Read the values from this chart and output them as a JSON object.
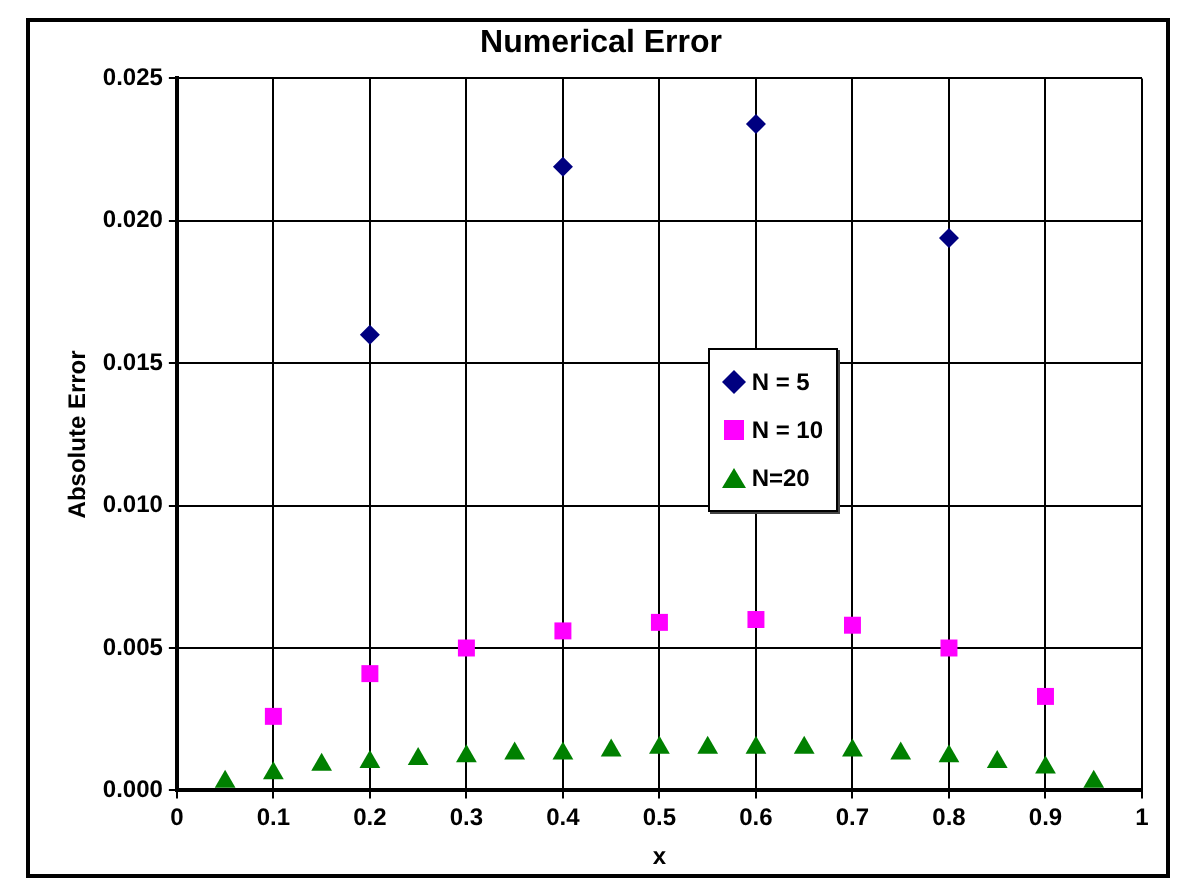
{
  "chart_data": {
    "type": "scatter",
    "title": "Numerical Error",
    "xlabel": "x",
    "ylabel": "Absolute Error",
    "xlim": [
      0,
      1
    ],
    "xticks": [
      0,
      0.1,
      0.2,
      0.3,
      0.4,
      0.5,
      0.6,
      0.7,
      0.8,
      0.9,
      1
    ],
    "ylim": [
      0,
      0.025
    ],
    "yticks": [
      {
        "value": 0,
        "label": "0.000"
      },
      {
        "value": 0.005,
        "label": "0.005"
      },
      {
        "value": 0.01,
        "label": "0.010"
      },
      {
        "value": 0.015,
        "label": "0.015"
      },
      {
        "value": 0.02,
        "label": "0.020"
      },
      {
        "value": 0.025,
        "label": "0.025"
      }
    ],
    "grid": true,
    "legend": "right",
    "series": [
      {
        "name": "N = 5",
        "color": "#000080",
        "marker": "diamond",
        "x": [
          0.2,
          0.4,
          0.6,
          0.8
        ],
        "values": [
          0.016,
          0.0219,
          0.0234,
          0.0194
        ]
      },
      {
        "name": "N = 10",
        "color": "#ff00ff",
        "marker": "square",
        "x": [
          0.1,
          0.2,
          0.3,
          0.4,
          0.5,
          0.6,
          0.7,
          0.8,
          0.9
        ],
        "values": [
          0.0026,
          0.0041,
          0.005,
          0.0056,
          0.0059,
          0.006,
          0.0058,
          0.005,
          0.0033
        ]
      },
      {
        "name": "N=20",
        "color": "#008000",
        "marker": "triangle",
        "x": [
          0.05,
          0.1,
          0.15,
          0.2,
          0.25,
          0.3,
          0.35,
          0.4,
          0.45,
          0.5,
          0.55,
          0.6,
          0.65,
          0.7,
          0.75,
          0.8,
          0.85,
          0.9,
          0.95
        ],
        "values": [
          0.0003,
          0.0006,
          0.0009,
          0.001,
          0.0011,
          0.0012,
          0.0013,
          0.0013,
          0.0014,
          0.0015,
          0.0015,
          0.0015,
          0.0015,
          0.0014,
          0.0013,
          0.0012,
          0.001,
          0.0008,
          0.0003
        ]
      }
    ]
  }
}
